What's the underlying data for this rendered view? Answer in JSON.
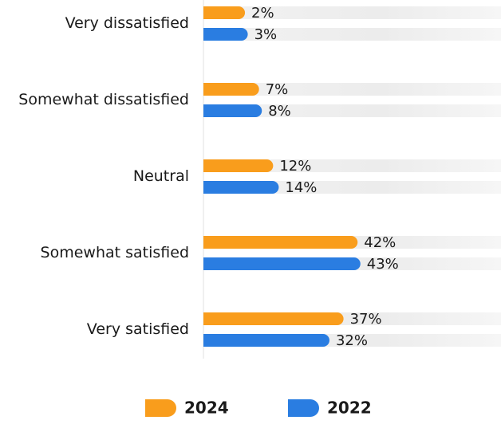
{
  "chart_data": {
    "type": "bar",
    "orientation": "horizontal",
    "categories": [
      "Very dissatisfied",
      "Somewhat dissatisfied",
      "Neutral",
      "Somewhat satisfied",
      "Very satisfied"
    ],
    "series": [
      {
        "name": "2024",
        "color": "#f99d1c",
        "values": [
          2,
          7,
          12,
          42,
          37
        ],
        "value_labels": [
          "2%",
          "7%",
          "12%",
          "42%",
          "37%"
        ]
      },
      {
        "name": "2022",
        "color": "#2a7de1",
        "values": [
          3,
          8,
          14,
          43,
          32
        ],
        "value_labels": [
          "3%",
          "8%",
          "14%",
          "43%",
          "32%"
        ]
      }
    ]
  }
}
